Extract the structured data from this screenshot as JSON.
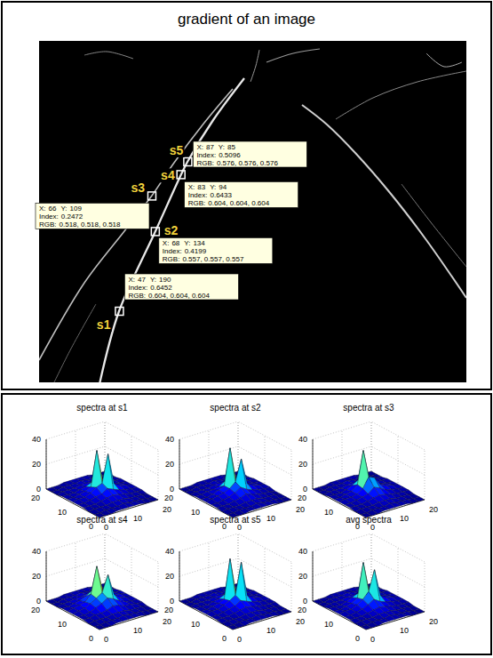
{
  "image": {
    "title": "gradient of an image",
    "xlim": [
      0,
      250
    ],
    "ylim": [
      0,
      240
    ],
    "tip_labels": {
      "x": "X:",
      "y": "Y:",
      "index": "Index:",
      "rgb": "RGB:"
    },
    "points": [
      {
        "name": "s1",
        "x": 47,
        "y": 190,
        "index": 0.6452,
        "rgb": "0.604, 0.604, 0.604"
      },
      {
        "name": "s2",
        "x": 68,
        "y": 134,
        "index": 0.4199,
        "rgb": "0.557, 0.557, 0.557"
      },
      {
        "name": "s3",
        "x": 66,
        "y": 109,
        "index": 0.2472,
        "rgb": "0.518, 0.518, 0.518"
      },
      {
        "name": "s4",
        "x": 83,
        "y": 94,
        "index": 0.6433,
        "rgb": "0.604, 0.604, 0.604"
      },
      {
        "name": "s5",
        "x": 87,
        "y": 85,
        "index": 0.5096,
        "rgb": "0.576, 0.576, 0.576"
      }
    ]
  },
  "chart_data": [
    {
      "type": "surface",
      "title": "spectra at s1",
      "x": [
        0,
        2,
        4,
        6,
        8,
        10,
        12,
        14,
        16,
        18,
        20
      ],
      "y": [
        0,
        2,
        4,
        6,
        8,
        10,
        12,
        14,
        16,
        18,
        20
      ],
      "z": [
        [
          0,
          0,
          0,
          1,
          1,
          1,
          1,
          1,
          0,
          0,
          0
        ],
        [
          0,
          0,
          1,
          1,
          1,
          2,
          1,
          1,
          1,
          0,
          0
        ],
        [
          0,
          1,
          1,
          1,
          2,
          2,
          2,
          1,
          1,
          1,
          0
        ],
        [
          1,
          1,
          1,
          2,
          3,
          4,
          3,
          2,
          1,
          1,
          1
        ],
        [
          1,
          1,
          2,
          3,
          4,
          7,
          5,
          3,
          2,
          1,
          1
        ],
        [
          1,
          2,
          2,
          4,
          7,
          9,
          31,
          6,
          3,
          2,
          1
        ],
        [
          1,
          1,
          2,
          3,
          5,
          33,
          7,
          4,
          2,
          1,
          1
        ],
        [
          1,
          1,
          1,
          2,
          3,
          5,
          3,
          2,
          1,
          1,
          1
        ],
        [
          0,
          1,
          1,
          1,
          2,
          2,
          2,
          1,
          1,
          1,
          0
        ],
        [
          0,
          0,
          1,
          1,
          1,
          2,
          1,
          1,
          1,
          0,
          0
        ],
        [
          0,
          0,
          0,
          1,
          1,
          1,
          1,
          1,
          0,
          0,
          0
        ]
      ],
      "xlim": [
        0,
        20
      ],
      "ylim": [
        0,
        20
      ],
      "zlim": [
        0,
        40
      ],
      "xticks": [
        0,
        10,
        20
      ],
      "yticks": [
        0,
        10,
        20
      ],
      "zticks": [
        0,
        20,
        40
      ],
      "grid": true
    },
    {
      "type": "surface",
      "title": "spectra at s2",
      "x": [
        0,
        2,
        4,
        6,
        8,
        10,
        12,
        14,
        16,
        18,
        20
      ],
      "y": [
        0,
        2,
        4,
        6,
        8,
        10,
        12,
        14,
        16,
        18,
        20
      ],
      "z": [
        [
          0,
          0,
          0,
          1,
          1,
          1,
          1,
          1,
          0,
          0,
          0
        ],
        [
          0,
          0,
          1,
          1,
          1,
          2,
          1,
          1,
          1,
          0,
          0
        ],
        [
          0,
          1,
          1,
          1,
          2,
          2,
          2,
          1,
          1,
          1,
          0
        ],
        [
          1,
          1,
          1,
          2,
          3,
          5,
          3,
          2,
          1,
          1,
          0
        ],
        [
          1,
          1,
          2,
          3,
          5,
          8,
          5,
          3,
          2,
          1,
          1
        ],
        [
          1,
          2,
          3,
          4,
          6,
          10,
          27,
          6,
          3,
          2,
          1
        ],
        [
          1,
          1,
          2,
          4,
          6,
          35,
          8,
          4,
          2,
          1,
          1
        ],
        [
          1,
          1,
          2,
          2,
          3,
          6,
          4,
          2,
          1,
          1,
          1
        ],
        [
          0,
          1,
          1,
          1,
          2,
          2,
          2,
          1,
          1,
          1,
          0
        ],
        [
          0,
          0,
          1,
          1,
          1,
          2,
          1,
          1,
          1,
          0,
          0
        ],
        [
          0,
          0,
          0,
          1,
          1,
          1,
          1,
          1,
          0,
          0,
          0
        ]
      ],
      "xlim": [
        0,
        20
      ],
      "ylim": [
        0,
        20
      ],
      "zlim": [
        0,
        40
      ],
      "xticks": [
        0,
        10,
        20
      ],
      "yticks": [
        0,
        10,
        20
      ],
      "zticks": [
        0,
        20,
        40
      ],
      "grid": true
    },
    {
      "type": "surface",
      "title": "spectra at s3",
      "x": [
        0,
        2,
        4,
        6,
        8,
        10,
        12,
        14,
        16,
        18,
        20
      ],
      "y": [
        0,
        2,
        4,
        6,
        8,
        10,
        12,
        14,
        16,
        18,
        20
      ],
      "z": [
        [
          0,
          0,
          0,
          1,
          1,
          1,
          1,
          1,
          0,
          0,
          0
        ],
        [
          0,
          0,
          1,
          1,
          1,
          2,
          1,
          1,
          1,
          0,
          0
        ],
        [
          0,
          1,
          1,
          1,
          2,
          2,
          2,
          1,
          1,
          1,
          0
        ],
        [
          1,
          1,
          1,
          2,
          3,
          4,
          3,
          2,
          1,
          1,
          1
        ],
        [
          1,
          1,
          2,
          3,
          4,
          8,
          6,
          3,
          2,
          1,
          1
        ],
        [
          1,
          2,
          2,
          3,
          6,
          14,
          12,
          5,
          3,
          2,
          1
        ],
        [
          1,
          1,
          2,
          3,
          7,
          33,
          9,
          4,
          2,
          1,
          1
        ],
        [
          1,
          1,
          1,
          2,
          4,
          7,
          4,
          2,
          1,
          1,
          1
        ],
        [
          0,
          1,
          1,
          1,
          2,
          2,
          2,
          1,
          1,
          1,
          0
        ],
        [
          0,
          0,
          1,
          1,
          1,
          2,
          1,
          1,
          1,
          0,
          0
        ],
        [
          0,
          0,
          0,
          1,
          1,
          1,
          1,
          1,
          0,
          0,
          0
        ]
      ],
      "xlim": [
        0,
        20
      ],
      "ylim": [
        0,
        20
      ],
      "zlim": [
        0,
        40
      ],
      "xticks": [
        0,
        10,
        20
      ],
      "yticks": [
        0,
        10,
        20
      ],
      "zticks": [
        0,
        20,
        40
      ],
      "grid": true
    },
    {
      "type": "surface",
      "title": "spectra at s4",
      "x": [
        0,
        2,
        4,
        6,
        8,
        10,
        12,
        14,
        16,
        18,
        20
      ],
      "y": [
        0,
        2,
        4,
        6,
        8,
        10,
        12,
        14,
        16,
        18,
        20
      ],
      "z": [
        [
          0,
          0,
          0,
          1,
          1,
          1,
          1,
          1,
          0,
          0,
          0
        ],
        [
          0,
          0,
          1,
          1,
          1,
          2,
          1,
          1,
          1,
          0,
          0
        ],
        [
          0,
          1,
          1,
          1,
          2,
          2,
          2,
          1,
          1,
          1,
          0
        ],
        [
          1,
          1,
          2,
          2,
          3,
          5,
          4,
          2,
          2,
          1,
          1
        ],
        [
          1,
          1,
          2,
          4,
          6,
          9,
          7,
          4,
          2,
          1,
          1
        ],
        [
          1,
          2,
          3,
          5,
          8,
          11,
          24,
          7,
          3,
          2,
          1
        ],
        [
          1,
          2,
          3,
          4,
          9,
          30,
          9,
          5,
          3,
          2,
          1
        ],
        [
          1,
          1,
          2,
          3,
          5,
          8,
          5,
          3,
          2,
          1,
          1
        ],
        [
          0,
          1,
          1,
          2,
          2,
          3,
          2,
          2,
          1,
          1,
          0
        ],
        [
          0,
          0,
          1,
          1,
          1,
          2,
          1,
          1,
          1,
          0,
          0
        ],
        [
          0,
          0,
          0,
          1,
          1,
          1,
          1,
          1,
          0,
          0,
          0
        ]
      ],
      "xlim": [
        0,
        20
      ],
      "ylim": [
        0,
        20
      ],
      "zlim": [
        0,
        40
      ],
      "xticks": [
        0,
        10,
        20
      ],
      "yticks": [
        0,
        10,
        20
      ],
      "zticks": [
        0,
        20,
        40
      ],
      "grid": true
    },
    {
      "type": "surface",
      "title": "spectra at s5",
      "x": [
        0,
        2,
        4,
        6,
        8,
        10,
        12,
        14,
        16,
        18,
        20
      ],
      "y": [
        0,
        2,
        4,
        6,
        8,
        10,
        12,
        14,
        16,
        18,
        20
      ],
      "z": [
        [
          0,
          0,
          0,
          1,
          1,
          1,
          1,
          1,
          0,
          0,
          0
        ],
        [
          0,
          0,
          1,
          1,
          1,
          2,
          1,
          1,
          1,
          0,
          0
        ],
        [
          0,
          1,
          1,
          1,
          2,
          2,
          2,
          1,
          1,
          1,
          0
        ],
        [
          1,
          1,
          1,
          2,
          3,
          4,
          3,
          2,
          1,
          1,
          1
        ],
        [
          1,
          1,
          2,
          3,
          4,
          7,
          5,
          3,
          2,
          1,
          1
        ],
        [
          1,
          2,
          2,
          4,
          6,
          9,
          34,
          6,
          3,
          2,
          1
        ],
        [
          1,
          1,
          2,
          3,
          5,
          36,
          7,
          4,
          2,
          1,
          1
        ],
        [
          1,
          1,
          1,
          2,
          3,
          5,
          3,
          2,
          1,
          1,
          1
        ],
        [
          0,
          1,
          1,
          1,
          2,
          2,
          2,
          1,
          1,
          1,
          0
        ],
        [
          0,
          0,
          1,
          1,
          1,
          2,
          1,
          1,
          1,
          0,
          0
        ],
        [
          0,
          0,
          0,
          1,
          1,
          1,
          1,
          1,
          0,
          0,
          0
        ]
      ],
      "xlim": [
        0,
        20
      ],
      "ylim": [
        0,
        20
      ],
      "zlim": [
        0,
        40
      ],
      "xticks": [
        0,
        10,
        20
      ],
      "yticks": [
        0,
        10,
        20
      ],
      "zticks": [
        0,
        20,
        40
      ],
      "grid": true
    },
    {
      "type": "surface",
      "title": "avg spectra",
      "x": [
        0,
        2,
        4,
        6,
        8,
        10,
        12,
        14,
        16,
        18,
        20
      ],
      "y": [
        0,
        2,
        4,
        6,
        8,
        10,
        12,
        14,
        16,
        18,
        20
      ],
      "z": [
        [
          0,
          0,
          0,
          1,
          1,
          1,
          1,
          1,
          0,
          0,
          0
        ],
        [
          0,
          0,
          1,
          1,
          1,
          2,
          1,
          1,
          1,
          0,
          0
        ],
        [
          0,
          1,
          1,
          1,
          2,
          2,
          2,
          1,
          1,
          1,
          0
        ],
        [
          1,
          1,
          1,
          2,
          3,
          4,
          3,
          2,
          1,
          1,
          1
        ],
        [
          1,
          1,
          2,
          3,
          5,
          8,
          5,
          3,
          2,
          1,
          1
        ],
        [
          1,
          2,
          2,
          4,
          7,
          12,
          28,
          6,
          3,
          2,
          1
        ],
        [
          1,
          1,
          2,
          3,
          6,
          33,
          8,
          4,
          2,
          1,
          1
        ],
        [
          1,
          1,
          1,
          2,
          4,
          6,
          4,
          2,
          1,
          1,
          1
        ],
        [
          0,
          1,
          1,
          1,
          2,
          2,
          2,
          1,
          1,
          1,
          0
        ],
        [
          0,
          0,
          1,
          1,
          1,
          2,
          1,
          1,
          1,
          0,
          0
        ],
        [
          0,
          0,
          0,
          1,
          1,
          1,
          1,
          1,
          0,
          0,
          0
        ]
      ],
      "xlim": [
        0,
        20
      ],
      "ylim": [
        0,
        20
      ],
      "zlim": [
        0,
        40
      ],
      "xticks": [
        0,
        10,
        20
      ],
      "yticks": [
        0,
        10,
        20
      ],
      "zticks": [
        0,
        20,
        40
      ],
      "grid": true
    }
  ]
}
